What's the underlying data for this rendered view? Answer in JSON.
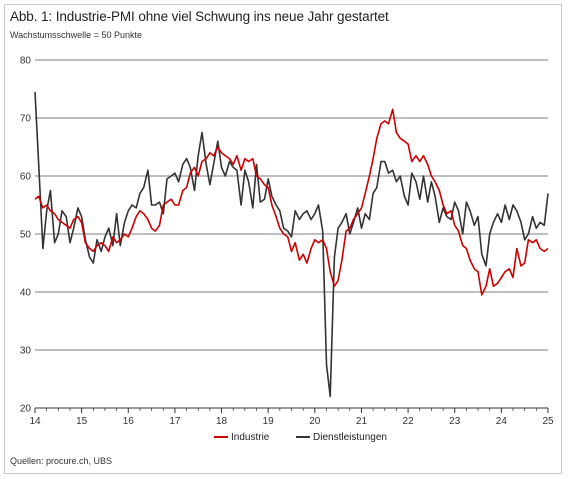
{
  "title": "Abb. 1: Industrie-PMI ohne viel Schwung ins neue Jahr gestartet",
  "subtitle": "Wachstumsschwelle = 50 Punkte",
  "source": "Quellen: procure.ch, UBS",
  "chart_data": {
    "type": "line",
    "ylim": [
      20,
      80
    ],
    "yticks": [
      "20",
      "30",
      "40",
      "50",
      "60",
      "70",
      "80"
    ],
    "xlim": [
      2014,
      2025
    ],
    "xticks": [
      "14",
      "15",
      "16",
      "17",
      "18",
      "19",
      "20",
      "21",
      "22",
      "23",
      "24",
      "25"
    ],
    "grid": true,
    "legend_position": "bottom-center",
    "series": [
      {
        "name": "Industrie",
        "color": "#cc0000",
        "x": [
          2014.0,
          2014.08,
          2014.17,
          2014.25,
          2014.33,
          2014.42,
          2014.5,
          2014.58,
          2014.67,
          2014.75,
          2014.83,
          2014.92,
          2015.0,
          2015.08,
          2015.17,
          2015.25,
          2015.33,
          2015.42,
          2015.5,
          2015.58,
          2015.67,
          2015.75,
          2015.83,
          2015.92,
          2016.0,
          2016.08,
          2016.17,
          2016.25,
          2016.33,
          2016.42,
          2016.5,
          2016.58,
          2016.67,
          2016.75,
          2016.83,
          2016.92,
          2017.0,
          2017.08,
          2017.17,
          2017.25,
          2017.33,
          2017.42,
          2017.5,
          2017.58,
          2017.67,
          2017.75,
          2017.83,
          2017.92,
          2018.0,
          2018.08,
          2018.17,
          2018.25,
          2018.33,
          2018.42,
          2018.5,
          2018.58,
          2018.67,
          2018.75,
          2018.83,
          2018.92,
          2019.0,
          2019.08,
          2019.17,
          2019.25,
          2019.33,
          2019.42,
          2019.5,
          2019.58,
          2019.67,
          2019.75,
          2019.83,
          2019.92,
          2020.0,
          2020.08,
          2020.17,
          2020.25,
          2020.33,
          2020.42,
          2020.5,
          2020.58,
          2020.67,
          2020.75,
          2020.83,
          2020.92,
          2021.0,
          2021.08,
          2021.17,
          2021.25,
          2021.33,
          2021.42,
          2021.5,
          2021.58,
          2021.67,
          2021.75,
          2021.83,
          2021.92,
          2022.0,
          2022.08,
          2022.17,
          2022.25,
          2022.33,
          2022.42,
          2022.5,
          2022.58,
          2022.67,
          2022.75,
          2022.83,
          2022.92,
          2023.0,
          2023.08,
          2023.17,
          2023.25,
          2023.33,
          2023.42,
          2023.5,
          2023.58,
          2023.67,
          2023.75,
          2023.83,
          2023.92,
          2024.0,
          2024.08,
          2024.17,
          2024.25,
          2024.33,
          2024.42,
          2024.5,
          2024.58,
          2024.67,
          2024.75,
          2024.83,
          2024.92,
          2025.0
        ],
        "values": [
          56.0,
          56.5,
          54.5,
          55.0,
          54.0,
          53.5,
          52.5,
          52.0,
          51.5,
          51.0,
          52.5,
          53.0,
          52.0,
          48.5,
          47.5,
          47.0,
          48.0,
          48.5,
          48.0,
          47.0,
          49.5,
          48.5,
          49.0,
          50.0,
          49.5,
          51.0,
          53.0,
          54.0,
          53.5,
          52.5,
          51.0,
          50.5,
          51.5,
          55.0,
          55.5,
          56.0,
          55.0,
          55.0,
          57.5,
          58.0,
          60.5,
          61.5,
          60.0,
          62.5,
          63.0,
          64.0,
          63.5,
          65.0,
          64.0,
          63.5,
          63.0,
          62.0,
          63.5,
          61.0,
          63.0,
          62.5,
          63.0,
          60.0,
          59.5,
          58.5,
          58.0,
          55.0,
          53.0,
          51.0,
          50.0,
          49.5,
          47.0,
          48.5,
          45.5,
          46.5,
          45.0,
          47.5,
          49.0,
          48.5,
          49.0,
          47.5,
          43.5,
          41.0,
          42.0,
          45.5,
          50.5,
          51.0,
          52.5,
          53.5,
          54.5,
          57.0,
          60.0,
          63.0,
          66.5,
          69.0,
          69.5,
          69.0,
          71.5,
          67.5,
          66.5,
          66.0,
          65.5,
          62.5,
          63.5,
          62.5,
          63.5,
          62.0,
          60.0,
          59.0,
          57.5,
          55.0,
          53.5,
          54.0,
          51.5,
          50.5,
          48.0,
          47.5,
          45.5,
          44.0,
          43.5,
          39.5,
          41.0,
          44.0,
          41.0,
          41.5,
          42.5,
          43.5,
          44.0,
          42.5,
          47.5,
          44.5,
          45.0,
          49.0,
          48.5,
          49.0,
          47.5,
          47.0,
          47.5
        ]
      },
      {
        "name": "Dienstleistungen",
        "color": "#333333",
        "x": [
          2014.0,
          2014.08,
          2014.17,
          2014.25,
          2014.33,
          2014.42,
          2014.5,
          2014.58,
          2014.67,
          2014.75,
          2014.83,
          2014.92,
          2015.0,
          2015.08,
          2015.17,
          2015.25,
          2015.33,
          2015.42,
          2015.5,
          2015.58,
          2015.67,
          2015.75,
          2015.83,
          2015.92,
          2016.0,
          2016.08,
          2016.17,
          2016.25,
          2016.33,
          2016.42,
          2016.5,
          2016.58,
          2016.67,
          2016.75,
          2016.83,
          2016.92,
          2017.0,
          2017.08,
          2017.17,
          2017.25,
          2017.33,
          2017.42,
          2017.5,
          2017.58,
          2017.67,
          2017.75,
          2017.83,
          2017.92,
          2018.0,
          2018.08,
          2018.17,
          2018.25,
          2018.33,
          2018.42,
          2018.5,
          2018.58,
          2018.67,
          2018.75,
          2018.83,
          2018.92,
          2019.0,
          2019.08,
          2019.17,
          2019.25,
          2019.33,
          2019.42,
          2019.5,
          2019.58,
          2019.67,
          2019.75,
          2019.83,
          2019.92,
          2020.0,
          2020.08,
          2020.17,
          2020.25,
          2020.33,
          2020.42,
          2020.5,
          2020.58,
          2020.67,
          2020.75,
          2020.83,
          2020.92,
          2021.0,
          2021.08,
          2021.17,
          2021.25,
          2021.33,
          2021.42,
          2021.5,
          2021.58,
          2021.67,
          2021.75,
          2021.83,
          2021.92,
          2022.0,
          2022.08,
          2022.17,
          2022.25,
          2022.33,
          2022.42,
          2022.5,
          2022.58,
          2022.67,
          2022.75,
          2022.83,
          2022.92,
          2023.0,
          2023.08,
          2023.17,
          2023.25,
          2023.33,
          2023.42,
          2023.5,
          2023.58,
          2023.67,
          2023.75,
          2023.83,
          2023.92,
          2024.0,
          2024.08,
          2024.17,
          2024.25,
          2024.33,
          2024.42,
          2024.5,
          2024.58,
          2024.67,
          2024.75,
          2024.83,
          2024.92,
          2025.0
        ],
        "values": [
          74.5,
          62.0,
          47.5,
          54.0,
          57.5,
          48.5,
          50.0,
          54.0,
          53.0,
          48.5,
          51.0,
          54.5,
          53.0,
          49.0,
          46.0,
          45.0,
          49.0,
          47.0,
          49.5,
          51.0,
          48.0,
          53.5,
          48.0,
          52.0,
          54.0,
          55.0,
          54.5,
          57.0,
          58.0,
          61.0,
          55.0,
          55.0,
          55.5,
          53.5,
          59.5,
          60.0,
          60.5,
          59.0,
          62.0,
          63.0,
          61.5,
          57.5,
          63.5,
          67.5,
          62.0,
          58.5,
          62.0,
          66.0,
          61.5,
          60.0,
          62.5,
          61.5,
          61.0,
          55.0,
          61.0,
          59.0,
          54.5,
          62.0,
          55.5,
          56.0,
          59.5,
          56.5,
          55.0,
          54.0,
          51.0,
          50.5,
          49.5,
          54.0,
          52.5,
          53.5,
          54.0,
          52.5,
          53.5,
          55.0,
          50.5,
          27.5,
          22.0,
          46.0,
          51.0,
          52.0,
          53.5,
          50.0,
          52.0,
          54.5,
          51.0,
          53.5,
          52.5,
          57.0,
          58.0,
          62.5,
          62.5,
          60.5,
          61.0,
          59.0,
          60.0,
          56.5,
          55.0,
          60.5,
          59.0,
          56.0,
          60.0,
          55.5,
          59.0,
          56.5,
          52.0,
          54.5,
          53.0,
          52.5,
          55.5,
          54.0,
          50.0,
          55.5,
          54.0,
          51.5,
          53.0,
          46.5,
          44.5,
          50.0,
          52.0,
          53.5,
          52.0,
          55.0,
          52.5,
          55.0,
          54.0,
          52.0,
          49.0,
          50.0,
          53.0,
          51.0,
          52.0,
          51.5,
          57.0
        ]
      }
    ]
  }
}
